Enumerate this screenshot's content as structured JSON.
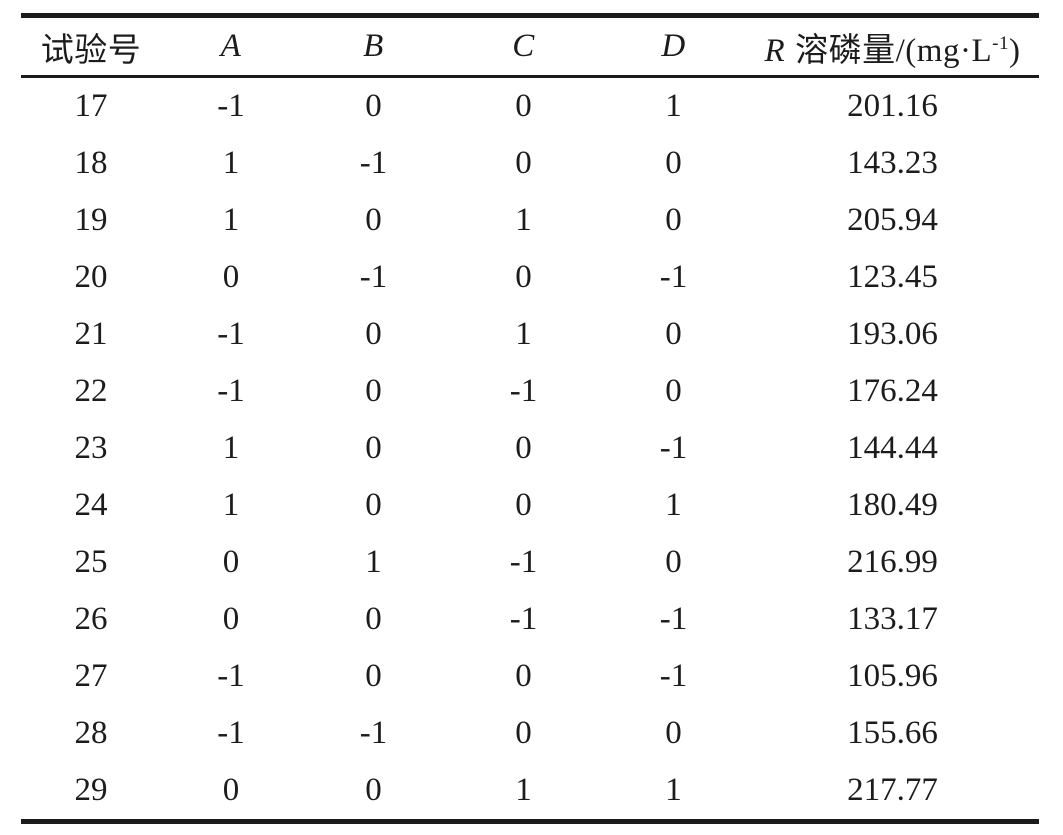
{
  "table": {
    "col_exp_header": "试验号",
    "factor_headers": [
      "A",
      "B",
      "C",
      "D"
    ],
    "r_header": {
      "symbol": "R",
      "label": "溶磷量/(mg·L",
      "sup": "-1",
      "suffix": ")"
    },
    "rows": [
      [
        "17",
        "-1",
        "0",
        "0",
        "1",
        "201.16"
      ],
      [
        "18",
        "1",
        "-1",
        "0",
        "0",
        "143.23"
      ],
      [
        "19",
        "1",
        "0",
        "1",
        "0",
        "205.94"
      ],
      [
        "20",
        "0",
        "-1",
        "0",
        "-1",
        "123.45"
      ],
      [
        "21",
        "-1",
        "0",
        "1",
        "0",
        "193.06"
      ],
      [
        "22",
        "-1",
        "0",
        "-1",
        "0",
        "176.24"
      ],
      [
        "23",
        "1",
        "0",
        "0",
        "-1",
        "144.44"
      ],
      [
        "24",
        "1",
        "0",
        "0",
        "1",
        "180.49"
      ],
      [
        "25",
        "0",
        "1",
        "-1",
        "0",
        "216.99"
      ],
      [
        "26",
        "0",
        "0",
        "-1",
        "-1",
        "133.17"
      ],
      [
        "27",
        "-1",
        "0",
        "0",
        "-1",
        "105.96"
      ],
      [
        "28",
        "-1",
        "-1",
        "0",
        "0",
        "155.66"
      ],
      [
        "29",
        "0",
        "0",
        "1",
        "1",
        "217.77"
      ]
    ],
    "text_color": "#1c1c1c",
    "rule_color": "#1b1b1b"
  }
}
